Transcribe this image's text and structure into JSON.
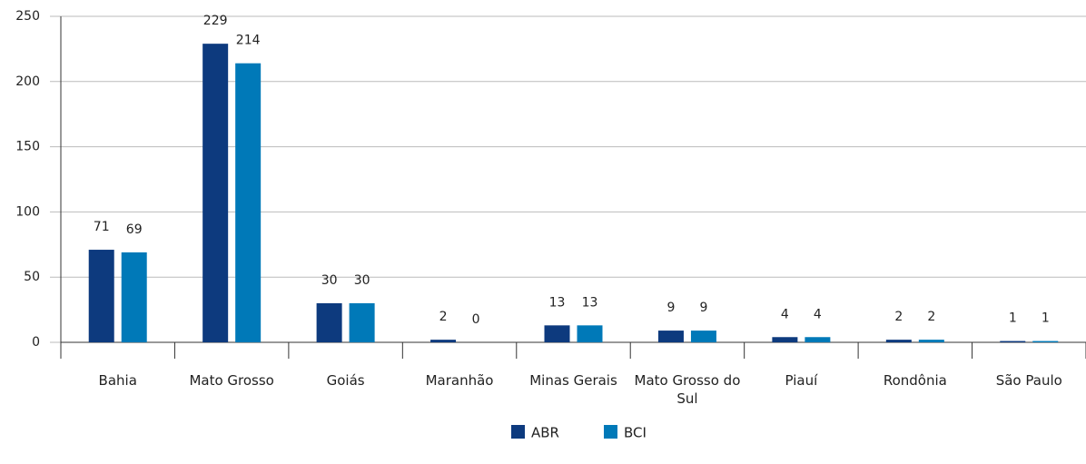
{
  "chart_data": {
    "type": "bar",
    "categories": [
      "Bahia",
      "Mato Grosso",
      "Goiás",
      "Maranhão",
      "Minas Gerais",
      "Mato Grosso do Sul",
      "Piauí",
      "Rondônia",
      "São Paulo"
    ],
    "series": [
      {
        "name": "ABR",
        "color": "#0d3a7e",
        "values": [
          71,
          229,
          30,
          2,
          13,
          9,
          4,
          2,
          1
        ]
      },
      {
        "name": "BCI",
        "color": "#0079b8",
        "values": [
          69,
          214,
          30,
          0,
          13,
          9,
          4,
          2,
          1
        ]
      }
    ],
    "ylim": [
      0,
      250
    ],
    "yticks": [
      0,
      50,
      100,
      150,
      200,
      250
    ],
    "grid": true,
    "legend": "bottom"
  }
}
